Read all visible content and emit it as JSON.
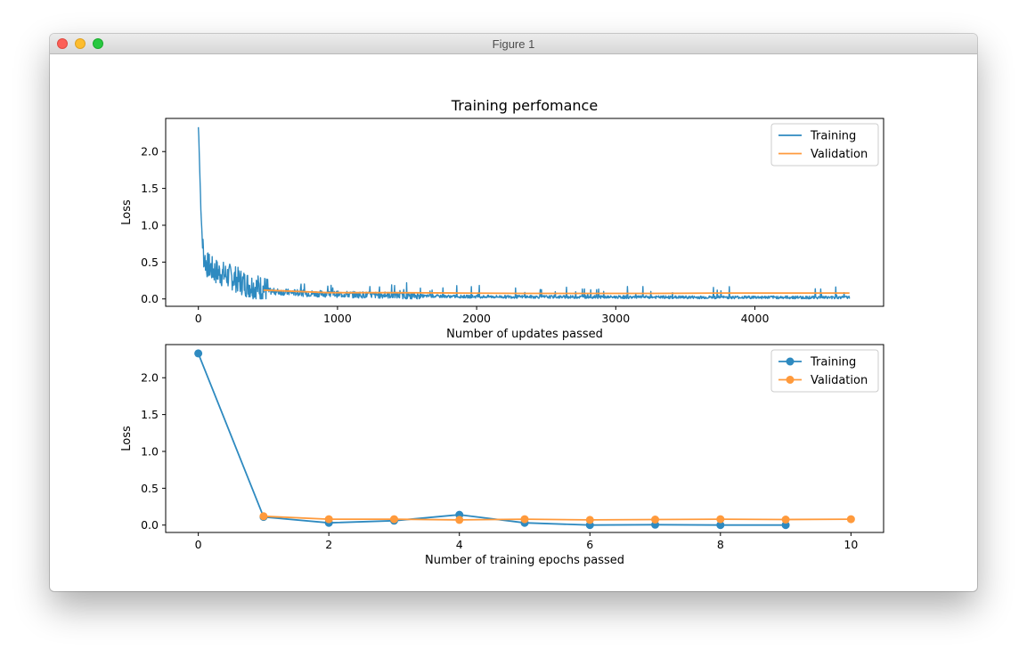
{
  "window": {
    "title": "Figure 1"
  },
  "colors": {
    "training": "#2e8ac0",
    "validation": "#ff9a3c"
  },
  "chart_data": [
    {
      "type": "line",
      "title": "Training perfomance",
      "xlabel": "Number of updates passed",
      "ylabel": "Loss",
      "xlim": [
        -235,
        4925
      ],
      "ylim": [
        -0.1,
        2.45
      ],
      "xticks": [
        0,
        1000,
        2000,
        3000,
        4000
      ],
      "yticks": [
        0.0,
        0.5,
        1.0,
        1.5,
        2.0
      ],
      "grid": false,
      "legend": "top-right",
      "series": [
        {
          "name": "Training",
          "marker": "none",
          "x": [
            0,
            5,
            12,
            20,
            30,
            40,
            50,
            60,
            80,
            100,
            130,
            160,
            200,
            250,
            300,
            350,
            400,
            450,
            500,
            600,
            700,
            800,
            900,
            1000,
            1100,
            1200,
            1300,
            1400,
            1500,
            1700,
            1900,
            2100,
            2400,
            2800,
            3200,
            3600,
            4000,
            4400,
            4680
          ],
          "values": [
            2.33,
            2.1,
            1.6,
            1.1,
            0.75,
            0.55,
            0.5,
            0.45,
            0.42,
            0.38,
            0.35,
            0.33,
            0.3,
            0.27,
            0.22,
            0.18,
            0.15,
            0.13,
            0.1,
            0.09,
            0.08,
            0.07,
            0.065,
            0.06,
            0.055,
            0.05,
            0.048,
            0.045,
            0.04,
            0.035,
            0.03,
            0.028,
            0.026,
            0.024,
            0.022,
            0.02,
            0.02,
            0.018,
            0.018
          ]
        },
        {
          "name": "Validation",
          "marker": "none",
          "x": [
            468,
            936,
            1404,
            1872,
            2340,
            2808,
            3276,
            3744,
            4212,
            4680
          ],
          "values": [
            0.12,
            0.085,
            0.085,
            0.08,
            0.075,
            0.075,
            0.075,
            0.08,
            0.08,
            0.08
          ]
        }
      ]
    },
    {
      "type": "line",
      "title": "",
      "xlabel": "Number of training epochs passed",
      "ylabel": "Loss",
      "xlim": [
        -0.5,
        10.5
      ],
      "ylim": [
        -0.1,
        2.45
      ],
      "xticks": [
        0,
        2,
        4,
        6,
        8,
        10
      ],
      "yticks": [
        0.0,
        0.5,
        1.0,
        1.5,
        2.0
      ],
      "grid": false,
      "legend": "top-right",
      "series": [
        {
          "name": "Training",
          "marker": "circle",
          "x": [
            0,
            1,
            2,
            3,
            4,
            5,
            6,
            7,
            8,
            9
          ],
          "values": [
            2.33,
            0.11,
            0.03,
            0.06,
            0.14,
            0.03,
            0.0,
            0.005,
            0.0,
            0.0
          ]
        },
        {
          "name": "Validation",
          "marker": "circle",
          "x": [
            1,
            2,
            3,
            4,
            5,
            6,
            7,
            8,
            9,
            10
          ],
          "values": [
            0.12,
            0.08,
            0.08,
            0.07,
            0.08,
            0.07,
            0.075,
            0.08,
            0.075,
            0.08
          ]
        }
      ]
    }
  ]
}
